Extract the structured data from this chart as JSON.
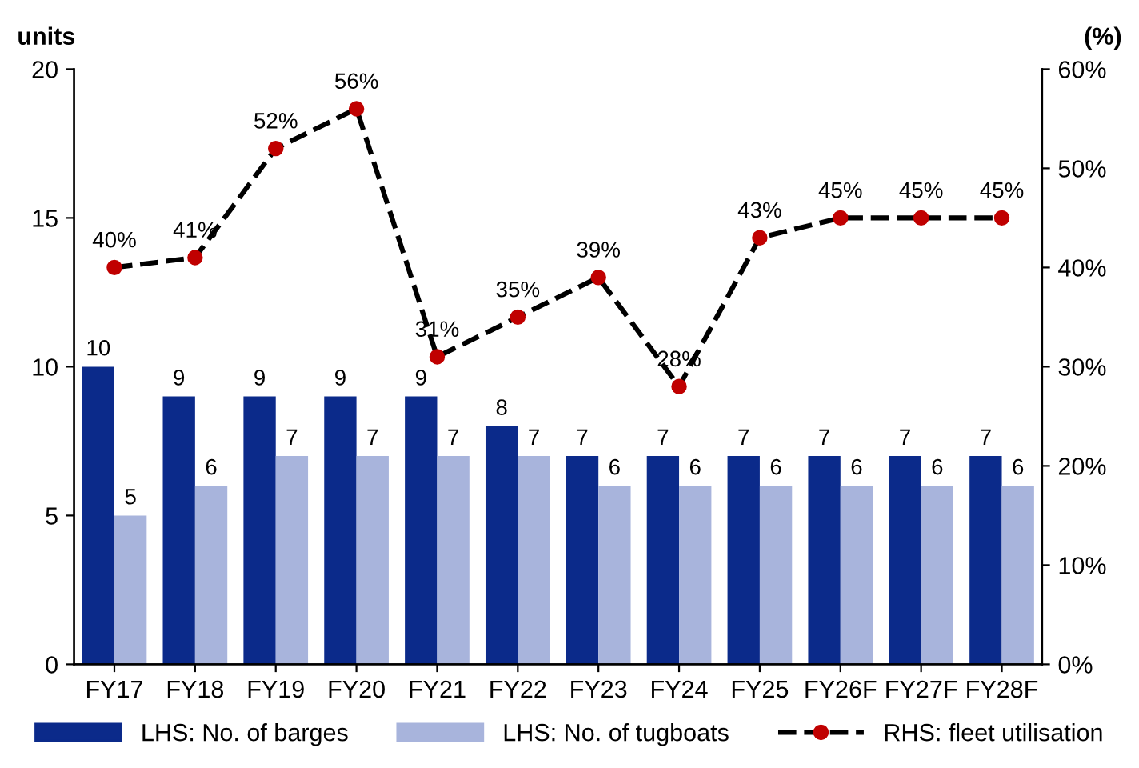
{
  "chart_data": {
    "type": "bar",
    "ylabel": "units",
    "y2label": "(%)",
    "categories": [
      "FY17",
      "FY18",
      "FY19",
      "FY20",
      "FY21",
      "FY22",
      "FY23",
      "FY24",
      "FY25",
      "FY26F",
      "FY27F",
      "FY28F"
    ],
    "series": [
      {
        "name": "LHS: No. of barges",
        "color": "#0b2a8a",
        "values": [
          10,
          9,
          9,
          9,
          9,
          8,
          7,
          7,
          7,
          7,
          7,
          7
        ],
        "value_labels": [
          "10",
          "9",
          "9",
          "9",
          "9",
          "8",
          "7",
          "7",
          "7",
          "7",
          "7",
          "7"
        ]
      },
      {
        "name": "LHS: No. of tugboats",
        "color": "#a8b4dc",
        "values": [
          5,
          6,
          7,
          7,
          7,
          7,
          6,
          6,
          6,
          6,
          6,
          6
        ],
        "value_labels": [
          "5",
          "6",
          "7",
          "7",
          "7",
          "7",
          "6",
          "6",
          "6",
          "6",
          "6",
          "6"
        ]
      },
      {
        "name": "RHS: fleet utilisation",
        "type": "line",
        "axis": "y2",
        "color": "#000000",
        "colors": [
          "#c00000",
          "#c00000",
          "#c00000",
          "#c00000",
          "#c00000",
          "#c00000",
          "#c00000",
          "#c00000",
          "#c00000",
          "#c00000",
          "#c00000",
          "#c00000"
        ],
        "marker": "circle",
        "line_style": "dashed",
        "values": [
          40,
          41,
          52,
          56,
          31,
          35,
          39,
          28,
          43,
          45,
          45,
          45
        ],
        "value_labels": [
          "40%",
          "41%",
          "52%",
          "56%",
          "31%",
          "35%",
          "39%",
          "28%",
          "43%",
          "45%",
          "45%",
          "45%"
        ]
      }
    ],
    "ylim": [
      0,
      20
    ],
    "yticks": [
      0,
      5,
      10,
      15,
      20
    ],
    "y2lim": [
      0,
      60
    ],
    "y2ticks": [
      {
        "value": 0,
        "label": "0%"
      },
      {
        "value": 10,
        "label": "10%"
      },
      {
        "value": 20,
        "label": "20%"
      },
      {
        "value": 30,
        "label": "30%"
      },
      {
        "value": 40,
        "label": "40%"
      },
      {
        "value": 50,
        "label": "50%"
      },
      {
        "value": 60,
        "label": "60%"
      }
    ],
    "grid": false,
    "legend": "bottom"
  }
}
